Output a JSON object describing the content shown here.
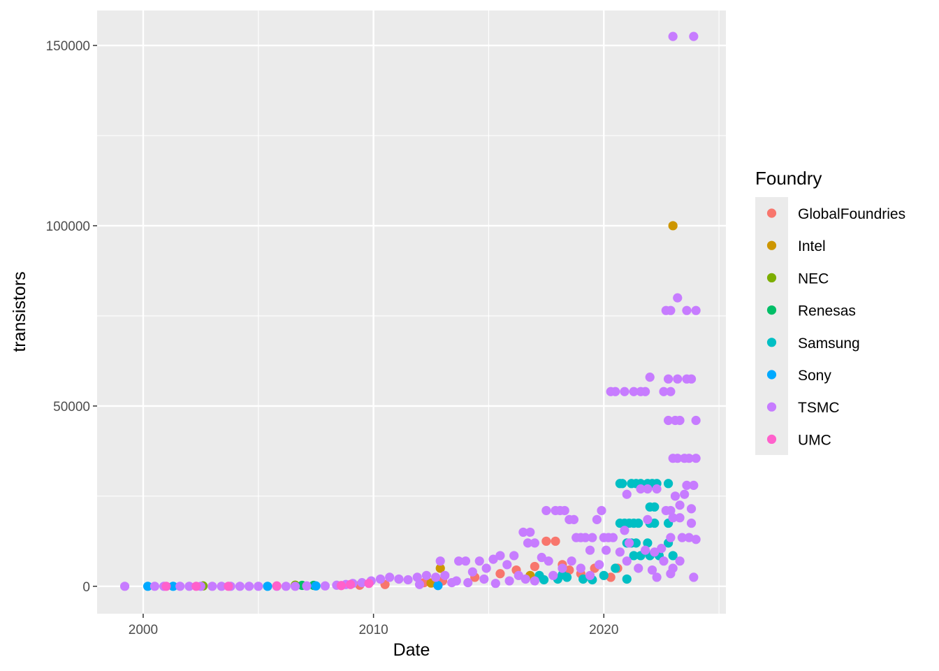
{
  "chart_data": {
    "type": "scatter",
    "title": "",
    "xlabel": "Date",
    "ylabel": "transistors",
    "xlim": [
      1998.0,
      2025.3
    ],
    "ylim": [
      -7600,
      159700
    ],
    "x_ticks": [
      2000,
      2010,
      2020
    ],
    "x_tick_labels": [
      "2000",
      "2010",
      "2020"
    ],
    "y_ticks": [
      0,
      50000,
      100000,
      150000
    ],
    "y_tick_labels": [
      "0",
      "50000",
      "100000",
      "150000"
    ],
    "grid": true,
    "legend": {
      "title": "Foundry",
      "position": "right",
      "entries": [
        {
          "name": "GlobalFoundries",
          "color": "#F8766D"
        },
        {
          "name": "Intel",
          "color": "#CD9600"
        },
        {
          "name": "NEC",
          "color": "#7CAE00"
        },
        {
          "name": "Renesas",
          "color": "#00BE67"
        },
        {
          "name": "Samsung",
          "color": "#00BFC4"
        },
        {
          "name": "Sony",
          "color": "#00A9FF"
        },
        {
          "name": "TSMC",
          "color": "#C77CFF"
        },
        {
          "name": "UMC",
          "color": "#FF61CC"
        }
      ]
    },
    "series": [
      {
        "name": "GlobalFoundries",
        "color": "#F8766D",
        "points": [
          [
            2009.4,
            300
          ],
          [
            2010.5,
            500
          ],
          [
            2012.2,
            1000
          ],
          [
            2013.0,
            1500
          ],
          [
            2014.4,
            2500
          ],
          [
            2015.5,
            3500
          ],
          [
            2016.2,
            4500
          ],
          [
            2017.0,
            5500
          ],
          [
            2017.5,
            12500
          ],
          [
            2017.9,
            12500
          ],
          [
            2018.2,
            6000
          ],
          [
            2018.5,
            4500
          ],
          [
            2019.0,
            3500
          ],
          [
            2019.6,
            5000
          ],
          [
            2020.3,
            2500
          ],
          [
            2020.6,
            5000
          ]
        ]
      },
      {
        "name": "Intel",
        "color": "#CD9600",
        "points": [
          [
            2012.9,
            5000
          ],
          [
            2012.5,
            900
          ],
          [
            2016.8,
            3000
          ],
          [
            2023.0,
            100000
          ]
        ]
      },
      {
        "name": "NEC",
        "color": "#7CAE00",
        "points": [
          [
            2002.6,
            100
          ],
          [
            2006.6,
            300
          ]
        ]
      },
      {
        "name": "Renesas",
        "color": "#00BE67",
        "points": [
          [
            2006.9,
            250
          ],
          [
            2007.4,
            250
          ]
        ]
      },
      {
        "name": "Samsung",
        "color": "#00BFC4",
        "points": [
          [
            2017.2,
            3000
          ],
          [
            2017.4,
            1800
          ],
          [
            2018.0,
            2000
          ],
          [
            2018.2,
            3200
          ],
          [
            2018.4,
            2500
          ],
          [
            2019.1,
            2000
          ],
          [
            2019.5,
            1800
          ],
          [
            2020.0,
            3000
          ],
          [
            2020.5,
            5000
          ],
          [
            2020.7,
            17500
          ],
          [
            2020.9,
            17500
          ],
          [
            2021.1,
            17500
          ],
          [
            2021.3,
            17500
          ],
          [
            2021.5,
            17500
          ],
          [
            2020.7,
            28500
          ],
          [
            2020.8,
            28500
          ],
          [
            2021.2,
            28500
          ],
          [
            2021.4,
            28500
          ],
          [
            2021.6,
            28500
          ],
          [
            2021.9,
            28500
          ],
          [
            2022.1,
            28500
          ],
          [
            2022.3,
            28500
          ],
          [
            2022.8,
            28500
          ],
          [
            2021.0,
            12000
          ],
          [
            2021.2,
            12000
          ],
          [
            2021.4,
            12000
          ],
          [
            2021.9,
            12000
          ],
          [
            2021.3,
            8500
          ],
          [
            2021.6,
            8500
          ],
          [
            2022.0,
            8500
          ],
          [
            2022.4,
            8500
          ],
          [
            2023.0,
            8500
          ],
          [
            2022.0,
            22000
          ],
          [
            2022.2,
            22000
          ],
          [
            2022.0,
            17500
          ],
          [
            2022.2,
            17500
          ],
          [
            2022.8,
            17500
          ],
          [
            2022.8,
            12000
          ],
          [
            2021.0,
            2000
          ]
        ]
      },
      {
        "name": "Sony",
        "color": "#00A9FF",
        "points": [
          [
            2000.2,
            0
          ],
          [
            2001.3,
            0
          ],
          [
            2005.4,
            0
          ],
          [
            2007.5,
            100
          ],
          [
            2012.8,
            200
          ]
        ]
      },
      {
        "name": "TSMC",
        "color": "#C77CFF",
        "points": [
          [
            1999.2,
            0
          ],
          [
            2000.5,
            0
          ],
          [
            2000.9,
            0
          ],
          [
            2001.6,
            0
          ],
          [
            2002.0,
            0
          ],
          [
            2002.5,
            0
          ],
          [
            2003.0,
            0
          ],
          [
            2003.4,
            0
          ],
          [
            2003.8,
            0
          ],
          [
            2004.2,
            0
          ],
          [
            2004.6,
            0
          ],
          [
            2005.0,
            0
          ],
          [
            2005.8,
            0
          ],
          [
            2006.2,
            0
          ],
          [
            2006.6,
            0
          ],
          [
            2007.1,
            100
          ],
          [
            2007.9,
            100
          ],
          [
            2008.4,
            300
          ],
          [
            2008.8,
            500
          ],
          [
            2009.1,
            800
          ],
          [
            2009.5,
            1000
          ],
          [
            2009.9,
            1500
          ],
          [
            2010.3,
            2000
          ],
          [
            2010.7,
            2500
          ],
          [
            2011.1,
            2000
          ],
          [
            2011.5,
            1800
          ],
          [
            2011.9,
            2500
          ],
          [
            2012.3,
            3000
          ],
          [
            2012.7,
            2500
          ],
          [
            2012.9,
            7000
          ],
          [
            2013.1,
            3000
          ],
          [
            2013.4,
            1000
          ],
          [
            2013.7,
            7000
          ],
          [
            2014.0,
            7000
          ],
          [
            2014.3,
            4000
          ],
          [
            2014.6,
            7000
          ],
          [
            2014.9,
            5000
          ],
          [
            2015.2,
            7500
          ],
          [
            2015.5,
            8500
          ],
          [
            2015.8,
            6000
          ],
          [
            2016.1,
            8500
          ],
          [
            2016.3,
            3000
          ],
          [
            2016.5,
            15000
          ],
          [
            2016.8,
            15000
          ],
          [
            2016.7,
            12000
          ],
          [
            2017.0,
            12000
          ],
          [
            2017.3,
            8000
          ],
          [
            2017.6,
            7000
          ],
          [
            2017.5,
            21000
          ],
          [
            2017.9,
            21000
          ],
          [
            2018.1,
            21000
          ],
          [
            2018.3,
            21000
          ],
          [
            2018.5,
            18500
          ],
          [
            2018.7,
            18500
          ],
          [
            2018.8,
            13500
          ],
          [
            2019.0,
            13500
          ],
          [
            2019.2,
            13500
          ],
          [
            2019.4,
            10000
          ],
          [
            2019.5,
            13500
          ],
          [
            2019.7,
            18500
          ],
          [
            2019.9,
            21000
          ],
          [
            2020.0,
            13500
          ],
          [
            2020.2,
            13500
          ],
          [
            2020.4,
            13500
          ],
          [
            2020.3,
            54000
          ],
          [
            2020.5,
            54000
          ],
          [
            2020.9,
            54000
          ],
          [
            2021.3,
            54000
          ],
          [
            2021.6,
            54000
          ],
          [
            2021.8,
            54000
          ],
          [
            2022.6,
            54000
          ],
          [
            2022.9,
            54000
          ],
          [
            2022.0,
            58000
          ],
          [
            2022.8,
            57500
          ],
          [
            2023.2,
            57500
          ],
          [
            2023.6,
            57500
          ],
          [
            2023.8,
            57500
          ],
          [
            2022.7,
            76500
          ],
          [
            2022.9,
            76500
          ],
          [
            2023.6,
            76500
          ],
          [
            2024.0,
            76500
          ],
          [
            2023.2,
            80000
          ],
          [
            2023.0,
            152500
          ],
          [
            2023.9,
            152500
          ],
          [
            2022.8,
            46000
          ],
          [
            2023.1,
            46000
          ],
          [
            2023.3,
            46000
          ],
          [
            2024.0,
            46000
          ],
          [
            2023.0,
            35500
          ],
          [
            2023.2,
            35500
          ],
          [
            2023.5,
            35500
          ],
          [
            2023.7,
            35500
          ],
          [
            2024.0,
            35500
          ],
          [
            2023.6,
            28000
          ],
          [
            2023.9,
            28000
          ],
          [
            2023.1,
            25000
          ],
          [
            2023.5,
            25500
          ],
          [
            2021.0,
            25500
          ],
          [
            2021.6,
            27000
          ],
          [
            2021.9,
            27000
          ],
          [
            2022.3,
            27000
          ],
          [
            2022.7,
            21000
          ],
          [
            2022.9,
            21000
          ],
          [
            2023.3,
            22500
          ],
          [
            2023.8,
            21500
          ],
          [
            2021.9,
            18500
          ],
          [
            2023.0,
            19000
          ],
          [
            2023.3,
            19000
          ],
          [
            2023.8,
            17500
          ],
          [
            2020.9,
            15500
          ],
          [
            2021.1,
            12000
          ],
          [
            2021.8,
            10000
          ],
          [
            2022.2,
            9500
          ],
          [
            2022.5,
            10500
          ],
          [
            2022.9,
            13500
          ],
          [
            2023.4,
            13500
          ],
          [
            2023.7,
            13500
          ],
          [
            2024.0,
            13000
          ],
          [
            2022.1,
            4500
          ],
          [
            2022.3,
            2500
          ],
          [
            2022.6,
            7000
          ],
          [
            2022.9,
            3500
          ],
          [
            2023.0,
            5000
          ],
          [
            2023.3,
            7000
          ],
          [
            2023.9,
            2500
          ],
          [
            2021.5,
            5000
          ],
          [
            2021.0,
            7000
          ],
          [
            2020.7,
            9500
          ],
          [
            2020.1,
            10000
          ],
          [
            2019.8,
            6000
          ],
          [
            2019.4,
            3000
          ],
          [
            2019.0,
            5000
          ],
          [
            2018.6,
            7000
          ],
          [
            2018.2,
            5000
          ],
          [
            2017.8,
            3000
          ],
          [
            2017.0,
            1500
          ],
          [
            2016.6,
            2000
          ],
          [
            2015.9,
            1500
          ],
          [
            2015.3,
            800
          ],
          [
            2014.8,
            2000
          ],
          [
            2014.1,
            1000
          ],
          [
            2013.6,
            1500
          ],
          [
            2012.0,
            500
          ]
        ]
      },
      {
        "name": "UMC",
        "color": "#FF61CC",
        "points": [
          [
            2001.0,
            0
          ],
          [
            2002.3,
            0
          ],
          [
            2003.7,
            0
          ],
          [
            2005.8,
            100
          ],
          [
            2008.6,
            200
          ],
          [
            2009.0,
            500
          ],
          [
            2009.8,
            800
          ]
        ]
      }
    ]
  }
}
